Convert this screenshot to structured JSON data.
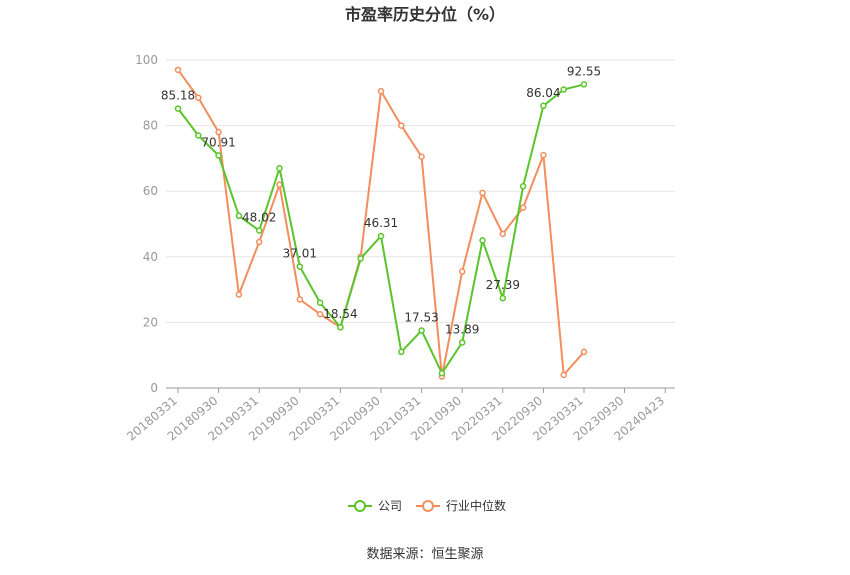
{
  "chart_data": {
    "type": "line",
    "title": "市盈率历史分位（%）",
    "source": "数据来源：恒生聚源",
    "ylim": [
      0,
      100
    ],
    "yticks": [
      0,
      20,
      40,
      60,
      80,
      100
    ],
    "xtick_labels": [
      "20180331",
      "20180930",
      "20190331",
      "20190930",
      "20200331",
      "20200930",
      "20210331",
      "20210930",
      "20220331",
      "20220930",
      "20230331",
      "20230930",
      "20240423"
    ],
    "grid": true,
    "legend_position": "bottom",
    "series": [
      {
        "name": "公司",
        "color": "#5ac42b",
        "values": [
          85.18,
          77.0,
          70.91,
          52.5,
          48.02,
          67.0,
          37.01,
          26.0,
          18.54,
          39.5,
          46.31,
          11.0,
          17.53,
          4.5,
          13.89,
          45.0,
          27.39,
          61.5,
          86.04,
          91.0,
          92.55
        ],
        "labels": {
          "0": "85.18",
          "2": "70.91",
          "4": "48.02",
          "6": "37.01",
          "8": "18.54",
          "10": "46.31",
          "12": "17.53",
          "14": "13.89",
          "16": "27.39",
          "18": "86.04",
          "20": "92.55"
        }
      },
      {
        "name": "行业中位数",
        "color": "#f28e5e",
        "values": [
          97.0,
          88.5,
          78.0,
          28.5,
          44.5,
          62.0,
          27.0,
          22.5,
          18.5,
          40.0,
          90.5,
          80.0,
          70.5,
          3.5,
          35.5,
          59.5,
          47.0,
          55.0,
          71.0,
          4.0,
          11.0
        ]
      }
    ]
  }
}
